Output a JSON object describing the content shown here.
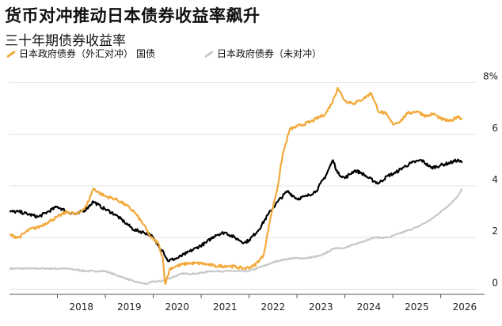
{
  "title": "货币对冲推动日本债券收益率飙升",
  "subtitle": "三十年期债券收益率",
  "legend": {
    "items": [
      {
        "label": "日本政府债券（外汇对冲）",
        "color": "#f2a93b"
      },
      {
        "label": "国债",
        "color": "#000000"
      },
      {
        "label": "日本政府债券（未对冲）",
        "color": "#c8c8c8"
      }
    ]
  },
  "chart_data": {
    "type": "line",
    "title": "货币对冲推动日本债券收益率飙升",
    "subtitle": "三十年期债券收益率",
    "xlabel": "",
    "ylabel": "",
    "xlim": [
      2017.0,
      2026.75
    ],
    "ylim": [
      -0.2,
      8.2
    ],
    "y_ticks": [
      0,
      2,
      4,
      6,
      8
    ],
    "y_tick_labels": [
      "0",
      "2",
      "4",
      "6",
      "8%"
    ],
    "x_ticks": [
      2018,
      2019,
      2020,
      2021,
      2022,
      2023,
      2024,
      2025,
      2026
    ],
    "x_tick_labels": [
      "2018",
      "2019",
      "2020",
      "2021",
      "2022",
      "2023",
      "2024",
      "2025",
      "2026"
    ],
    "grid": "horizontal",
    "series": [
      {
        "name": "日本政府债券（外汇对冲）",
        "color": "#f2a93b",
        "x": [
          2017.0,
          2017.2,
          2017.4,
          2017.6,
          2017.8,
          2018.0,
          2018.2,
          2018.4,
          2018.6,
          2018.75,
          2018.9,
          2019.0,
          2019.2,
          2019.4,
          2019.6,
          2019.8,
          2019.95,
          2020.1,
          2020.2,
          2020.25,
          2020.35,
          2020.5,
          2020.7,
          2021.0,
          2021.3,
          2021.6,
          2021.9,
          2022.1,
          2022.3,
          2022.45,
          2022.6,
          2022.7,
          2022.85,
          2023.0,
          2023.3,
          2023.6,
          2023.75,
          2023.85,
          2024.0,
          2024.2,
          2024.4,
          2024.55,
          2024.7,
          2024.85,
          2025.0,
          2025.15,
          2025.3,
          2025.5,
          2025.7,
          2025.85,
          2026.0,
          2026.2,
          2026.35,
          2026.45
        ],
        "values": [
          2.1,
          2.0,
          2.3,
          2.4,
          2.6,
          2.8,
          3.0,
          2.9,
          3.2,
          3.9,
          3.7,
          3.6,
          3.5,
          3.3,
          3.0,
          2.5,
          2.0,
          1.8,
          1.2,
          0.2,
          0.8,
          0.9,
          1.0,
          1.0,
          0.9,
          0.9,
          0.8,
          0.9,
          1.3,
          2.8,
          4.0,
          5.2,
          6.2,
          6.3,
          6.5,
          6.8,
          7.3,
          7.8,
          7.3,
          7.2,
          7.4,
          7.6,
          6.9,
          6.8,
          6.4,
          6.5,
          6.8,
          6.9,
          6.7,
          6.8,
          6.6,
          6.5,
          6.7,
          6.6
        ]
      },
      {
        "name": "国债",
        "color": "#000000",
        "x": [
          2017.0,
          2017.2,
          2017.4,
          2017.6,
          2017.8,
          2018.0,
          2018.2,
          2018.4,
          2018.6,
          2018.75,
          2018.9,
          2019.0,
          2019.2,
          2019.4,
          2019.6,
          2019.8,
          2019.95,
          2020.1,
          2020.2,
          2020.3,
          2020.5,
          2020.7,
          2020.9,
          2021.1,
          2021.3,
          2021.5,
          2021.7,
          2021.9,
          2022.0,
          2022.2,
          2022.4,
          2022.6,
          2022.8,
          2023.0,
          2023.2,
          2023.4,
          2023.6,
          2023.75,
          2023.85,
          2024.0,
          2024.2,
          2024.35,
          2024.5,
          2024.7,
          2024.9,
          2025.05,
          2025.2,
          2025.4,
          2025.6,
          2025.8,
          2026.0,
          2026.2,
          2026.35,
          2026.45
        ],
        "values": [
          3.0,
          3.0,
          2.9,
          2.8,
          3.0,
          3.2,
          3.0,
          2.9,
          3.1,
          3.4,
          3.2,
          3.1,
          2.9,
          2.6,
          2.3,
          2.2,
          2.1,
          1.7,
          1.5,
          1.1,
          1.2,
          1.4,
          1.6,
          1.8,
          2.1,
          2.2,
          2.0,
          1.8,
          1.9,
          2.3,
          2.9,
          3.4,
          3.8,
          3.5,
          3.6,
          3.8,
          4.4,
          5.0,
          4.5,
          4.3,
          4.6,
          4.5,
          4.3,
          4.1,
          4.4,
          4.5,
          4.7,
          4.9,
          5.0,
          4.7,
          4.8,
          4.9,
          5.0,
          4.9
        ]
      },
      {
        "name": "日本政府债券（未对冲）",
        "color": "#c8c8c8",
        "x": [
          2017.0,
          2017.4,
          2017.8,
          2018.2,
          2018.6,
          2019.0,
          2019.3,
          2019.6,
          2019.85,
          2020.0,
          2020.15,
          2020.3,
          2020.6,
          2020.9,
          2021.2,
          2021.5,
          2021.8,
          2022.0,
          2022.3,
          2022.6,
          2022.9,
          2023.2,
          2023.5,
          2023.8,
          2024.0,
          2024.3,
          2024.6,
          2024.9,
          2025.2,
          2025.5,
          2025.8,
          2026.0,
          2026.2,
          2026.35,
          2026.45
        ],
        "values": [
          0.8,
          0.8,
          0.8,
          0.8,
          0.7,
          0.7,
          0.5,
          0.3,
          0.2,
          0.3,
          0.3,
          0.4,
          0.6,
          0.6,
          0.7,
          0.7,
          0.7,
          0.7,
          0.9,
          1.1,
          1.2,
          1.2,
          1.3,
          1.6,
          1.6,
          1.8,
          2.0,
          2.0,
          2.2,
          2.4,
          2.7,
          3.0,
          3.3,
          3.6,
          3.9
        ]
      }
    ]
  }
}
